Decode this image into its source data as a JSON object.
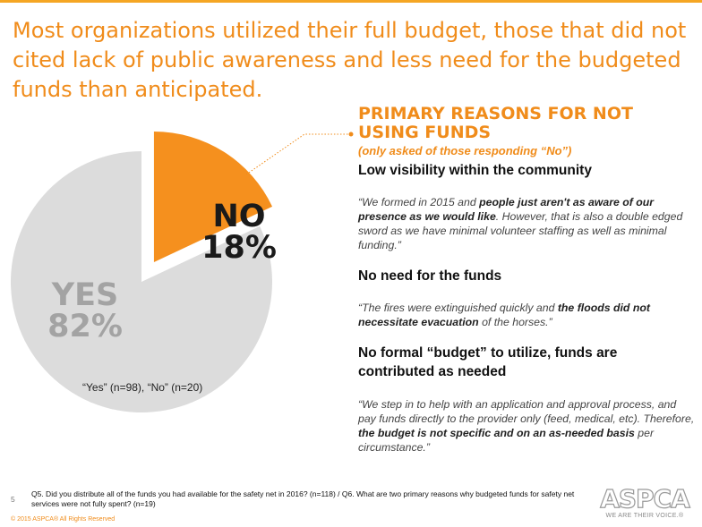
{
  "headline": "Most organizations utilized their full budget, those that did not cited lack of public awareness and less need for the budgeted funds than anticipated.",
  "chart_data": {
    "type": "pie",
    "slices": [
      {
        "label": "YES",
        "value": 82,
        "display": "82%",
        "color": "#dcdcdc"
      },
      {
        "label": "NO",
        "value": 18,
        "display": "18%",
        "color": "#f5901e"
      }
    ],
    "note": "“Yes” (n=98), “No” (n=20)"
  },
  "reasons": {
    "title": "PRIMARY REASONS FOR NOT USING FUNDS",
    "subtitle": "(only asked of those responding “No”)",
    "items": [
      {
        "heading": "Low visibility within the community",
        "quote_parts": [
          {
            "text": "“We formed in 2015 and ",
            "bold": false
          },
          {
            "text": "people just aren't as aware of our presence as we would like",
            "bold": true
          },
          {
            "text": ".  However, that is also a double edged sword as we have minimal volunteer staffing as well as minimal funding.”",
            "bold": false
          }
        ]
      },
      {
        "heading": "No need for the funds",
        "quote_parts": [
          {
            "text": "“The fires were extinguished quickly and ",
            "bold": false
          },
          {
            "text": "the floods did not necessitate evacuation",
            "bold": true
          },
          {
            "text": " of the horses.”",
            "bold": false
          }
        ]
      },
      {
        "heading": "No formal “budget” to utilize, funds are contributed as needed",
        "quote_parts": [
          {
            "text": "“We step in to help with an application and approval process, and pay funds directly to the provider only (feed, medical, etc). Therefore, ",
            "bold": false
          },
          {
            "text": "the budget is not specific and on an as-needed basis",
            "bold": true
          },
          {
            "text": " per circumstance.”",
            "bold": false
          }
        ]
      }
    ]
  },
  "footer": {
    "question": "Q5. Did you distribute all of the funds you had available for the safety net in 2016? (n=118) / Q6. What are two primary reasons why budgeted funds for safety net services were not fully spent? (n=19)",
    "page_number": "5",
    "copyright": "© 2015 ASPCA®  All Rights Reserved"
  },
  "logo": {
    "word": "ASPCA",
    "tagline": "WE ARE THEIR VOICE.®"
  },
  "colors": {
    "accent": "#f08c1b",
    "slice_no": "#f5901e",
    "slice_yes": "#dcdcdc"
  }
}
